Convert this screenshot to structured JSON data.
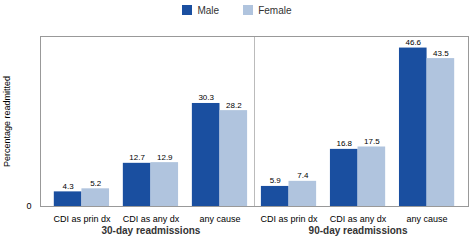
{
  "chart_data": {
    "type": "bar",
    "ylabel": "Percentage readmitted",
    "ylim": [
      0,
      50
    ],
    "yticks": [
      0
    ],
    "grid": false,
    "legend": "top",
    "data_labels": true,
    "groups": [
      {
        "label": "30-day readmissions",
        "categories": [
          "CDI as prin dx",
          "CDI as any dx",
          "any cause"
        ],
        "series": [
          {
            "name": "Male",
            "color": "#1a4fa0",
            "values": [
              4.3,
              12.7,
              30.3
            ]
          },
          {
            "name": "Female",
            "color": "#b0c4de",
            "values": [
              5.2,
              12.9,
              28.2
            ]
          }
        ]
      },
      {
        "label": "90-day readmissions",
        "categories": [
          "CDI as prin dx",
          "CDI as any dx",
          "any cause"
        ],
        "series": [
          {
            "name": "Male",
            "color": "#1a4fa0",
            "values": [
              5.9,
              16.8,
              46.6
            ]
          },
          {
            "name": "Female",
            "color": "#b0c4de",
            "values": [
              7.4,
              17.5,
              43.5
            ]
          }
        ]
      }
    ]
  }
}
